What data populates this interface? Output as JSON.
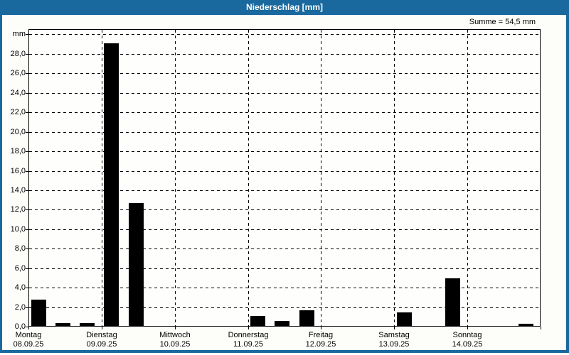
{
  "titlebar": {
    "title": "Niederschlag [mm]"
  },
  "summary_label": "Summe = 54,5 mm",
  "colors": {
    "titlebar_bg": "#19699E",
    "border": "#19699E",
    "title_text": "#FFFFFF",
    "bar": "#000000",
    "grid": "#000000",
    "text": "#000000",
    "plot_bg": "#FEFEFD"
  },
  "chart_data": {
    "type": "bar",
    "title": "Niederschlag [mm]",
    "ylabel": "mm",
    "ylim": [
      0,
      30.5
    ],
    "ytick_step": 2.0,
    "grid": "dashed",
    "legend": "none",
    "sum_mm": "54,5",
    "bars_per_day": 3,
    "yticks": [
      {
        "v": 30,
        "label": "mm"
      },
      {
        "v": 28,
        "label": "28,0"
      },
      {
        "v": 26,
        "label": "26,0"
      },
      {
        "v": 24,
        "label": "24,0"
      },
      {
        "v": 22,
        "label": "22,0"
      },
      {
        "v": 20,
        "label": "20,0"
      },
      {
        "v": 18,
        "label": "18,0"
      },
      {
        "v": 16,
        "label": "16,0"
      },
      {
        "v": 14,
        "label": "14,0"
      },
      {
        "v": 12,
        "label": "12,0"
      },
      {
        "v": 10,
        "label": "10,0"
      },
      {
        "v": 8,
        "label": "8,0"
      },
      {
        "v": 6,
        "label": "6,0"
      },
      {
        "v": 4,
        "label": "4,0"
      },
      {
        "v": 2,
        "label": "2,0"
      },
      {
        "v": 0,
        "label": "0,0"
      }
    ],
    "days": [
      {
        "name": "Montag",
        "date": "08.09.25",
        "values": [
          2.7,
          0.3,
          0.3
        ]
      },
      {
        "name": "Dienstag",
        "date": "09.09.25",
        "values": [
          29.0,
          12.6,
          0
        ]
      },
      {
        "name": "Mittwoch",
        "date": "10.09.25",
        "values": [
          0,
          0,
          0
        ]
      },
      {
        "name": "Donnerstag",
        "date": "11.09.25",
        "values": [
          1.0,
          0.5,
          1.6
        ]
      },
      {
        "name": "Freitag",
        "date": "12.09.25",
        "values": [
          0,
          0,
          0
        ]
      },
      {
        "name": "Samstag",
        "date": "13.09.25",
        "values": [
          1.4,
          0,
          4.9
        ]
      },
      {
        "name": "Sonntag",
        "date": "14.09.25",
        "values": [
          0,
          0,
          0.2
        ]
      }
    ]
  }
}
